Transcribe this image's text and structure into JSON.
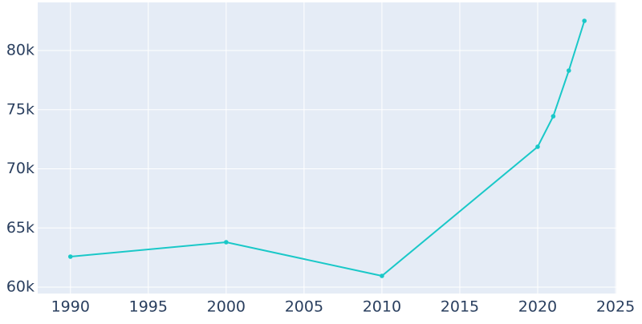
{
  "chart_data": {
    "type": "line",
    "x": [
      1990,
      2000,
      2010,
      2020,
      2021,
      2022,
      2023
    ],
    "series": [
      {
        "color": "#1ac8c8",
        "values": [
          62576,
          63797,
          60949,
          71864,
          74441,
          78305,
          82508
        ]
      }
    ],
    "xlim": [
      1987.9,
      2025.05
    ],
    "ylim": [
      59458,
      84068
    ],
    "xticks": [
      1990,
      1995,
      2000,
      2005,
      2010,
      2015,
      2020,
      2025
    ],
    "yticks": [
      {
        "value": 60000,
        "label": "60k"
      },
      {
        "value": 65000,
        "label": "65k"
      },
      {
        "value": 70000,
        "label": "70k"
      },
      {
        "value": 75000,
        "label": "75k"
      },
      {
        "value": 80000,
        "label": "80k"
      }
    ],
    "grid": true,
    "background": "#e5ecf6"
  }
}
